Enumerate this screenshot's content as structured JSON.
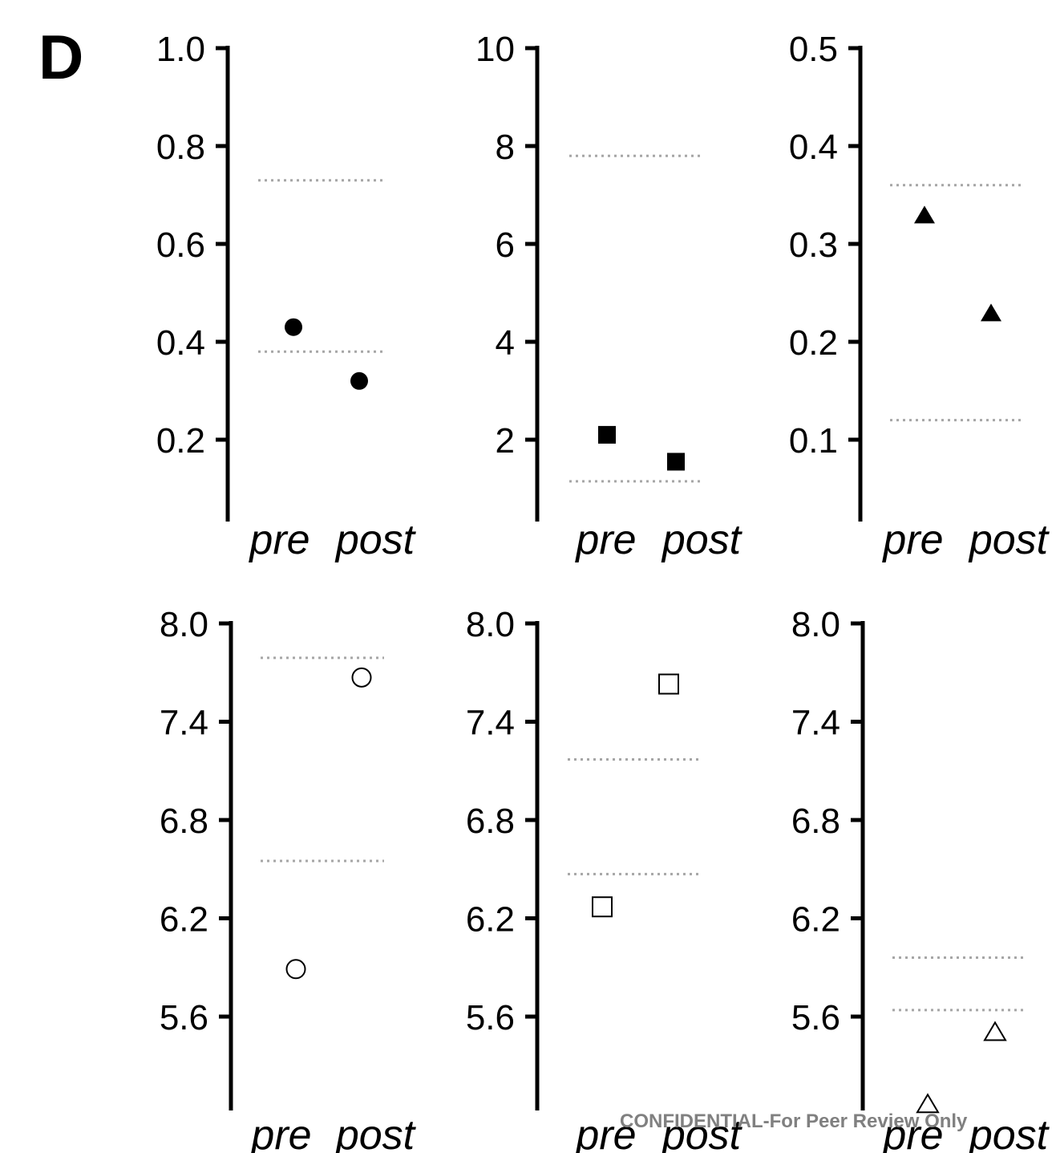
{
  "panel_label": "D",
  "watermark": "CONFIDENTIAL-For Peer Review Only",
  "chart_data": [
    {
      "type": "scatter",
      "categories": [
        "pre",
        "post"
      ],
      "ylim": [
        0.0,
        1.0
      ],
      "yticks": [
        0.2,
        0.4,
        0.6,
        0.8,
        1.0
      ],
      "ytick_labels": [
        "0.2",
        "0.4",
        "0.6",
        "0.8",
        "1.0"
      ],
      "values": [
        0.43,
        0.32
      ],
      "marker": "filled-circle",
      "reference_lines": [
        0.73,
        0.38
      ]
    },
    {
      "type": "scatter",
      "categories": [
        "pre",
        "post"
      ],
      "ylim": [
        0,
        10
      ],
      "yticks": [
        2,
        4,
        6,
        8,
        10
      ],
      "ytick_labels": [
        "2",
        "4",
        "6",
        "8",
        "10"
      ],
      "values": [
        2.1,
        1.55
      ],
      "marker": "filled-square",
      "reference_lines": [
        7.8,
        1.15
      ]
    },
    {
      "type": "scatter",
      "categories": [
        "pre",
        "post"
      ],
      "ylim": [
        0.0,
        0.5
      ],
      "yticks": [
        0.1,
        0.2,
        0.3,
        0.4,
        0.5
      ],
      "ytick_labels": [
        "0.1",
        "0.2",
        "0.3",
        "0.4",
        "0.5"
      ],
      "values": [
        0.33,
        0.23
      ],
      "marker": "filled-triangle",
      "reference_lines": [
        0.36,
        0.12
      ]
    },
    {
      "type": "scatter",
      "categories": [
        "pre",
        "post"
      ],
      "ylim": [
        5.0,
        8.0
      ],
      "yticks": [
        5.6,
        6.2,
        6.8,
        7.4,
        8.0
      ],
      "ytick_labels": [
        "5.6",
        "6.2",
        "6.8",
        "7.4",
        "8.0"
      ],
      "values": [
        5.89,
        7.67
      ],
      "marker": "open-circle",
      "reference_lines": [
        7.79,
        6.55
      ]
    },
    {
      "type": "scatter",
      "categories": [
        "pre",
        "post"
      ],
      "ylim": [
        5.0,
        8.0
      ],
      "yticks": [
        5.6,
        6.2,
        6.8,
        7.4,
        8.0
      ],
      "ytick_labels": [
        "5.6",
        "6.2",
        "6.8",
        "7.4",
        "8.0"
      ],
      "values": [
        6.27,
        7.63
      ],
      "marker": "open-square",
      "reference_lines": [
        7.17,
        6.47
      ]
    },
    {
      "type": "scatter",
      "categories": [
        "pre",
        "post"
      ],
      "ylim": [
        5.0,
        8.0
      ],
      "yticks": [
        5.6,
        6.2,
        6.8,
        7.4,
        8.0
      ],
      "ytick_labels": [
        "5.6",
        "6.2",
        "6.8",
        "7.4",
        "8.0"
      ],
      "values": [
        5.07,
        5.51
      ],
      "marker": "open-triangle",
      "reference_lines": [
        5.96,
        5.64
      ]
    }
  ]
}
